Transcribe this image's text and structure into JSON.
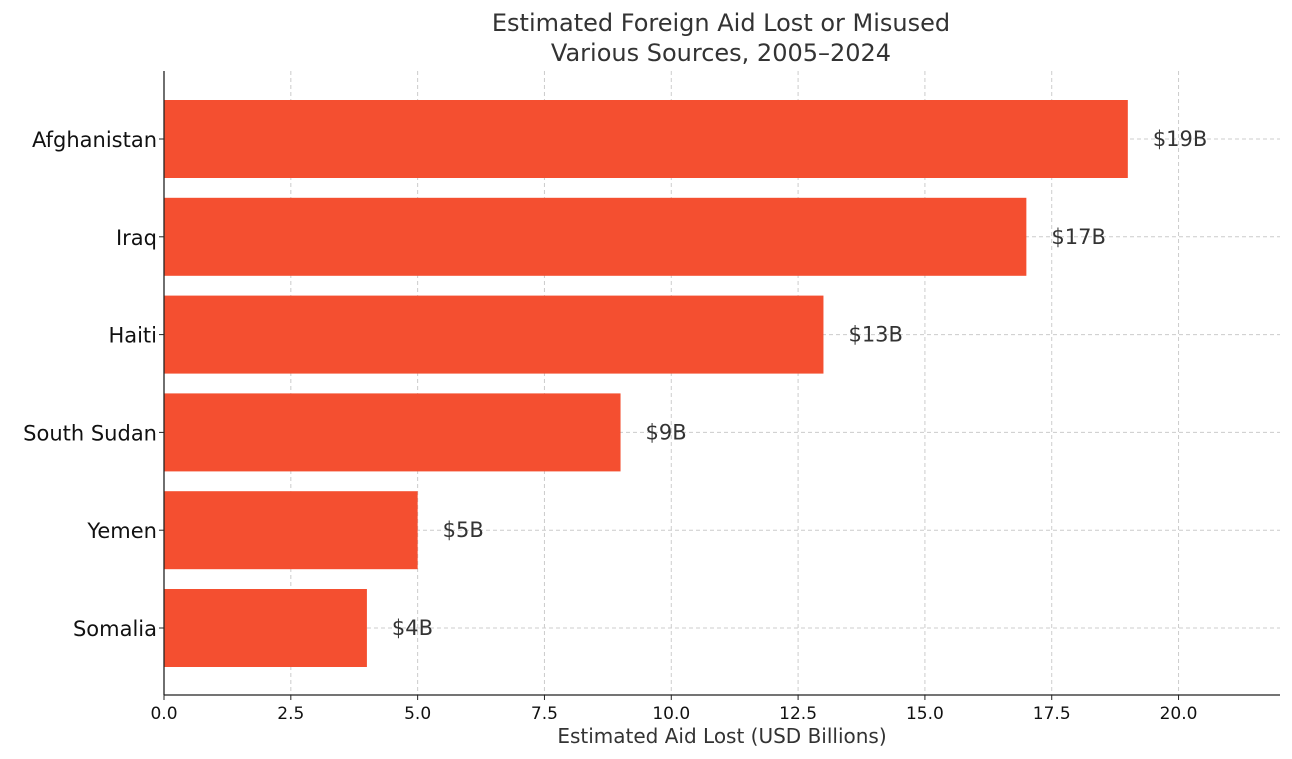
{
  "chart_data": {
    "type": "bar",
    "orientation": "horizontal",
    "title": [
      "Estimated Foreign Aid Lost or Misused",
      "Various Sources, 2005–2024"
    ],
    "xlabel": "Estimated Aid Lost (USD Billions)",
    "ylabel": "",
    "categories": [
      "Afghanistan",
      "Iraq",
      "Haiti",
      "South Sudan",
      "Yemen",
      "Somalia"
    ],
    "values": [
      19,
      17,
      13,
      9,
      5,
      4
    ],
    "data_labels": [
      "$19B",
      "$17B",
      "$13B",
      "$9B",
      "$5B",
      "$4B"
    ],
    "xlim": [
      0,
      22
    ],
    "xticks": [
      0,
      2.5,
      5,
      7.5,
      10,
      12.5,
      15,
      17.5,
      20
    ],
    "xtick_labels": [
      "0.0",
      "2.5",
      "5.0",
      "7.5",
      "10.0",
      "12.5",
      "15.0",
      "17.5",
      "20.0"
    ],
    "grid": true,
    "grid_style": "dashed",
    "bar_color": "#f44f30",
    "text_color": "#333333",
    "grid_color": "#cccccc",
    "axis_color": "#222222"
  }
}
